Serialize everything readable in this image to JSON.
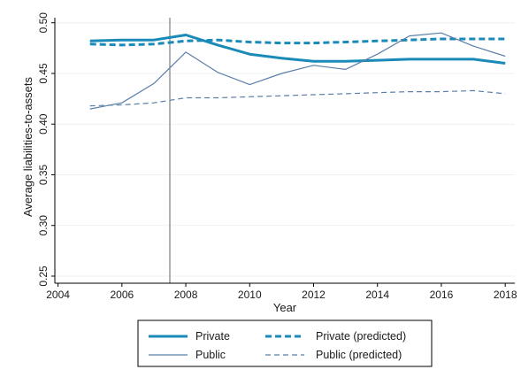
{
  "chart_data": {
    "type": "line",
    "title": "",
    "xlabel": "Year",
    "ylabel": "Average liabilities-to-assets",
    "xlim": [
      2003.9,
      2018.3
    ],
    "ylim": [
      0.243,
      0.505
    ],
    "xticks": [
      2004,
      2006,
      2008,
      2010,
      2012,
      2014,
      2016,
      2018
    ],
    "xtick_labels": [
      "2004",
      "2006",
      "2008",
      "2010",
      "2012",
      "2014",
      "2016",
      "2018"
    ],
    "yticks": [
      0.25,
      0.3,
      0.35,
      0.4,
      0.45,
      0.5
    ],
    "ytick_labels": [
      "0.25",
      "0.30",
      "0.35",
      "0.40",
      "0.45",
      "0.50"
    ],
    "vline_x": 2007.5,
    "grid": true,
    "legend_position": "bottom",
    "series": [
      {
        "name": "Private",
        "color": "#1a8ab8",
        "style": "solid-thick",
        "x": [
          2005,
          2006,
          2007,
          2008,
          2009,
          2010,
          2011,
          2012,
          2013,
          2014,
          2015,
          2016,
          2017,
          2018
        ],
        "y": [
          0.482,
          0.483,
          0.483,
          0.488,
          0.478,
          0.469,
          0.465,
          0.462,
          0.462,
          0.463,
          0.464,
          0.464,
          0.464,
          0.46
        ]
      },
      {
        "name": "Private (predicted)",
        "color": "#1a8ab8",
        "style": "dashed-thick",
        "x": [
          2005,
          2006,
          2007,
          2008,
          2009,
          2010,
          2011,
          2012,
          2013,
          2014,
          2015,
          2016,
          2017,
          2018
        ],
        "y": [
          0.479,
          0.478,
          0.479,
          0.482,
          0.483,
          0.481,
          0.48,
          0.48,
          0.481,
          0.482,
          0.483,
          0.484,
          0.484,
          0.484
        ]
      },
      {
        "name": "Public",
        "color": "#5a7fa8",
        "style": "solid-thin",
        "x": [
          2005,
          2006,
          2007,
          2008,
          2009,
          2010,
          2011,
          2012,
          2013,
          2014,
          2015,
          2016,
          2017,
          2018
        ],
        "y": [
          0.415,
          0.421,
          0.44,
          0.471,
          0.451,
          0.439,
          0.45,
          0.458,
          0.454,
          0.469,
          0.487,
          0.49,
          0.477,
          0.467
        ]
      },
      {
        "name": "Public (predicted)",
        "color": "#5a7fa8",
        "style": "dashed-thin",
        "x": [
          2005,
          2006,
          2007,
          2008,
          2009,
          2010,
          2011,
          2012,
          2013,
          2014,
          2015,
          2016,
          2017,
          2018
        ],
        "y": [
          0.418,
          0.419,
          0.421,
          0.426,
          0.426,
          0.427,
          0.428,
          0.429,
          0.43,
          0.431,
          0.432,
          0.432,
          0.433,
          0.43
        ]
      }
    ]
  },
  "colors": {
    "background": "#ffffff",
    "plot_background": "#ffffff",
    "grid": "#eaf2f3",
    "axis": "#000000",
    "vline": "#666666"
  }
}
